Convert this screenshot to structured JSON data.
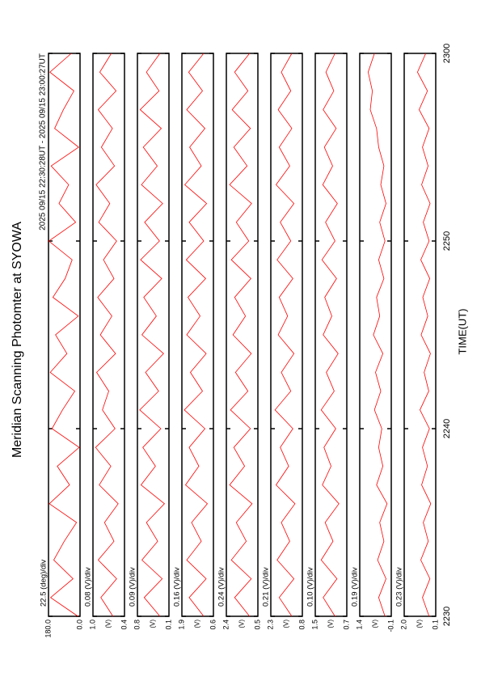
{
  "chart_data": {
    "type": "line",
    "title": "Meridian Scanning Photomter at SYOWA",
    "subtitle": "2025 09/15 22:30:28UT - 2025 09/15 23:00:27UT",
    "xlabel": "TIME(UT)",
    "xlim": [
      0,
      30
    ],
    "xticks": [
      {
        "value": 0,
        "label": "2230"
      },
      {
        "value": 10,
        "label": "2240"
      },
      {
        "value": 20,
        "label": "2250"
      },
      {
        "value": 30,
        "label": "2300"
      }
    ],
    "x": [
      0,
      1,
      2,
      3,
      4,
      5,
      6,
      7,
      8,
      9,
      10,
      11,
      12,
      13,
      14,
      15,
      16,
      17,
      18,
      19,
      20,
      21,
      22,
      23,
      24,
      25,
      26,
      27,
      28,
      29,
      30
    ],
    "color": "#ff0000",
    "panels": [
      {
        "label": "22.5 (deg)/div",
        "ylim": [
          0,
          180
        ],
        "yticks": [
          {
            "value": 0,
            "label": "0.0"
          },
          {
            "value": 180,
            "label": "180.0"
          }
        ],
        "values": [
          12,
          168,
          40,
          150,
          90,
          20,
          175,
          60,
          130,
          5,
          160,
          100,
          30,
          170,
          75,
          140,
          10,
          155,
          85,
          45,
          178,
          25,
          120,
          65,
          165,
          8,
          145,
          95,
          35,
          172,
          50
        ]
      },
      {
        "label": "0.08 (V)/div",
        "unit": "(V)",
        "ylim": [
          0.4,
          1.0
        ],
        "yticks": [
          0.4,
          {
            "value": 1.0,
            "label": "1.0"
          }
        ],
        "values": [
          0.62,
          0.85,
          0.55,
          0.9,
          0.6,
          0.78,
          0.52,
          0.88,
          0.66,
          0.95,
          0.58,
          0.82,
          0.7,
          0.93,
          0.57,
          0.86,
          0.64,
          0.91,
          0.6,
          0.8,
          0.55,
          0.89,
          0.68,
          0.94,
          0.59,
          0.84,
          0.63,
          0.9,
          0.56,
          0.87,
          0.65
        ]
      },
      {
        "label": "0.09 (V)/div",
        "unit": "(V)",
        "ylim": [
          0.1,
          0.8
        ],
        "yticks": [
          0.1,
          0.8
        ],
        "values": [
          0.3,
          0.65,
          0.25,
          0.7,
          0.35,
          0.6,
          0.2,
          0.72,
          0.4,
          0.68,
          0.28,
          0.75,
          0.33,
          0.62,
          0.22,
          0.7,
          0.38,
          0.66,
          0.26,
          0.73,
          0.31,
          0.64,
          0.24,
          0.71,
          0.36,
          0.67,
          0.27,
          0.74,
          0.32,
          0.6,
          0.3
        ]
      },
      {
        "label": "0.16 (V)/div",
        "unit": "(V)",
        "ylim": [
          0.6,
          1.9
        ],
        "yticks": [
          0.6,
          1.9
        ],
        "values": [
          1.0,
          1.6,
          0.9,
          1.7,
          1.1,
          1.5,
          0.85,
          1.75,
          1.2,
          1.6,
          0.95,
          1.8,
          1.05,
          1.55,
          0.9,
          1.7,
          1.15,
          1.65,
          0.92,
          1.72,
          1.0,
          1.6,
          0.88,
          1.78,
          1.1,
          1.58,
          0.95,
          1.7,
          1.05,
          1.62,
          1.0
        ]
      },
      {
        "label": "0.24 (V)/div",
        "unit": "(V)",
        "ylim": [
          0.5,
          2.4
        ],
        "yticks": [
          0.5,
          2.4
        ],
        "values": [
          1.0,
          1.9,
          0.9,
          2.1,
          1.2,
          1.8,
          0.85,
          2.2,
          1.3,
          1.95,
          0.95,
          2.15,
          1.1,
          1.85,
          0.9,
          2.0,
          1.25,
          1.9,
          0.92,
          2.1,
          1.05,
          1.8,
          0.88,
          2.2,
          1.15,
          1.95,
          0.95,
          2.05,
          1.1,
          1.9,
          1.0
        ]
      },
      {
        "label": "0.21 (V)/div",
        "unit": "(V)",
        "ylim": [
          0.8,
          2.3
        ],
        "yticks": [
          0.8,
          2.3
        ],
        "values": [
          1.3,
          1.9,
          1.2,
          2.0,
          1.4,
          1.8,
          1.15,
          2.05,
          1.45,
          1.85,
          1.25,
          2.1,
          1.35,
          1.8,
          1.2,
          1.95,
          1.5,
          1.9,
          1.25,
          2.0,
          1.35,
          1.85,
          1.2,
          2.05,
          1.4,
          1.9,
          1.3,
          1.95,
          1.35,
          1.8,
          1.3
        ]
      },
      {
        "label": "0.10 (V)/div",
        "unit": "(V)",
        "ylim": [
          0.7,
          1.5
        ],
        "yticks": [
          0.7,
          1.5
        ],
        "values": [
          1.0,
          1.3,
          0.95,
          1.35,
          1.05,
          1.25,
          0.9,
          1.32,
          1.1,
          1.28,
          0.98,
          1.35,
          1.02,
          1.22,
          0.92,
          1.3,
          1.08,
          1.26,
          0.96,
          1.33,
          1.0,
          1.24,
          0.94,
          1.31,
          1.06,
          1.27,
          0.97,
          1.3,
          1.03,
          1.23,
          1.0
        ]
      },
      {
        "label": "0.19 (V)/div",
        "unit": "(V)",
        "ylim": [
          -0.1,
          1.4
        ],
        "yticks": [
          -0.1,
          1.4
        ],
        "values": [
          0.2,
          0.5,
          0.15,
          0.55,
          0.25,
          0.45,
          0.1,
          0.6,
          0.3,
          0.5,
          0.35,
          0.7,
          0.4,
          0.65,
          0.3,
          0.75,
          0.45,
          0.6,
          0.25,
          0.5,
          0.2,
          0.45,
          0.15,
          0.4,
          0.25,
          0.5,
          0.6,
          0.9,
          0.8,
          1.0,
          0.7
        ]
      },
      {
        "label": "0.23 (V)/div",
        "unit": "(V)",
        "ylim": [
          0.1,
          2.0
        ],
        "yticks": [
          0.1,
          {
            "value": 2.0,
            "label": "2.0"
          }
        ],
        "values": [
          0.5,
          0.9,
          0.45,
          1.0,
          0.55,
          0.85,
          0.4,
          0.95,
          0.6,
          0.9,
          0.48,
          1.05,
          0.52,
          0.8,
          0.42,
          0.98,
          0.58,
          0.88,
          0.46,
          1.0,
          0.5,
          0.85,
          0.44,
          0.95,
          0.56,
          0.9,
          0.5,
          1.1,
          0.6,
          1.2,
          0.7
        ]
      }
    ]
  }
}
